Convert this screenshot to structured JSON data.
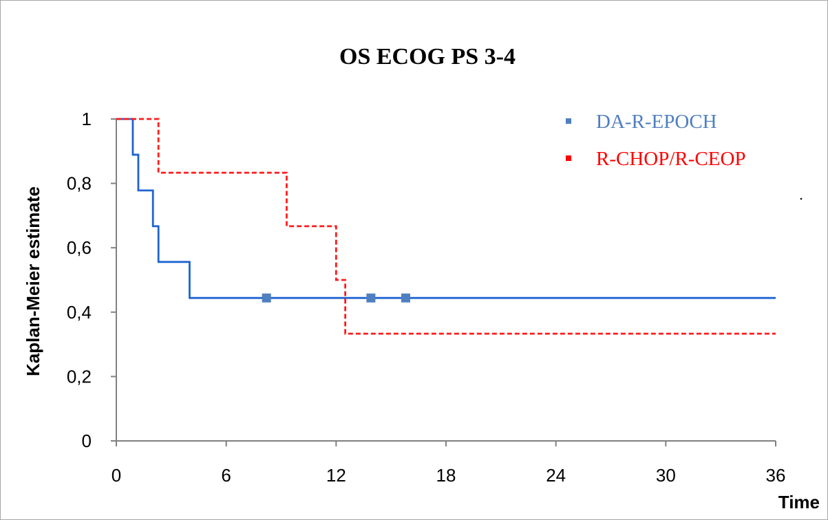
{
  "chart_data": {
    "type": "line",
    "title": "OS ECOG PS 3-4",
    "xlabel": "Time",
    "ylabel": "Kaplan-Meier estimate",
    "xlim": [
      0,
      36
    ],
    "ylim": [
      0,
      1
    ],
    "x_ticks": [
      0,
      6,
      12,
      18,
      24,
      30,
      36
    ],
    "y_ticks": [
      0,
      0.2,
      0.4,
      0.6,
      0.8,
      1
    ],
    "x_tick_labels": [
      "0",
      "6",
      "12",
      "18",
      "24",
      "30",
      "36"
    ],
    "y_tick_labels": [
      "0",
      "0,2",
      "0,4",
      "0,6",
      "0,8",
      "1"
    ],
    "grid": false,
    "legend_position": "top-right",
    "series": [
      {
        "name": "DA-R-EPOCH",
        "color": "#1f63d1",
        "dash": "solid",
        "step_points": [
          [
            0,
            1.0
          ],
          [
            0.9,
            0.889
          ],
          [
            1.2,
            0.778
          ],
          [
            2.0,
            0.667
          ],
          [
            2.3,
            0.556
          ],
          [
            4.0,
            0.444
          ],
          [
            36,
            0.444
          ]
        ],
        "censored": [
          [
            8.2,
            0.444
          ],
          [
            13.9,
            0.444
          ],
          [
            15.8,
            0.444
          ]
        ],
        "legend_color": "#4f7fbf"
      },
      {
        "name": "R-CHOP/R-CEOP",
        "color": "#ff1a1a",
        "dash": "dashed",
        "step_points": [
          [
            0,
            1.0
          ],
          [
            2.3,
            0.833
          ],
          [
            9.3,
            0.667
          ],
          [
            12.0,
            0.5
          ],
          [
            12.5,
            0.333
          ],
          [
            36,
            0.333
          ]
        ],
        "censored": [],
        "legend_color": "#ff0000"
      }
    ]
  }
}
